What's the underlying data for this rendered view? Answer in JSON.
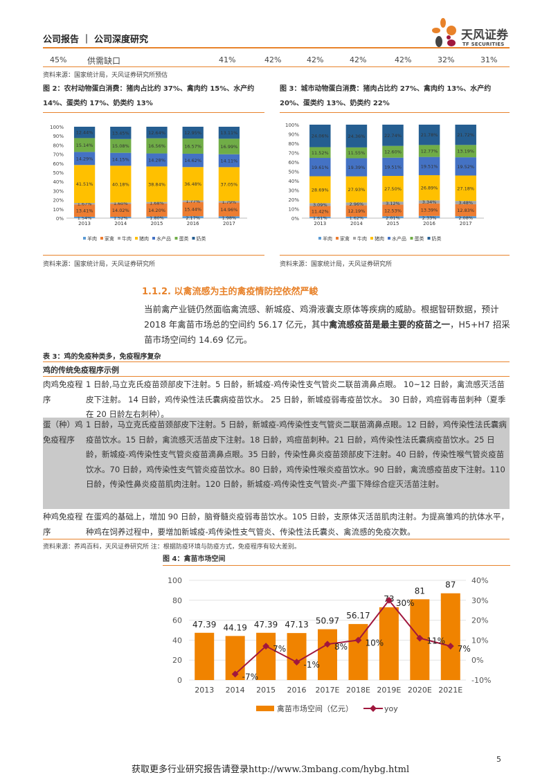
{
  "header": {
    "title": "公司报告 ｜ 公司深度研究",
    "logo_cn": "天风证券",
    "logo_en": "TF SECURITIES"
  },
  "top_row": {
    "cells": [
      "45%",
      "供需缺口",
      "41%",
      "42%",
      "42%",
      "42%",
      "42%",
      "32%",
      "31%"
    ],
    "source": "资料来源：国家统计局，天风证券研究所预估"
  },
  "fig2": {
    "title_label": "图 2：",
    "title": "农村动物蛋白消费：猪肉占比约 37%、禽肉约 15%、水产约 14%、蛋类约 17%、奶类约 13%",
    "source": "资料来源：国家统计局，天风证券研究所"
  },
  "fig3": {
    "title_label": "图 3：",
    "title": "城市动物蛋白消费：猪肉占比约 27%、禽肉约 13%、水产约 20%、蛋类约 13%、奶类约 22%",
    "source": "资料来源：国家统计局，天风证券研究所"
  },
  "chart_data": [
    {
      "type": "bar",
      "stacked": true,
      "categories": [
        "2013",
        "2014",
        "2015",
        "2016",
        "2017"
      ],
      "ylim": [
        0,
        100
      ],
      "yticks": [
        "0%",
        "10%",
        "20%",
        "30%",
        "40%",
        "50%",
        "60%",
        "70%",
        "80%",
        "90%",
        "100%"
      ],
      "legend": "bottom",
      "series": [
        {
          "name": "羊肉",
          "color": "#5B9BD5",
          "values": [
            1.54,
            1.52,
            1.8,
            2.17,
            1.98
          ],
          "labels": [
            "1.54%",
            "1.52%",
            "1.80%",
            "2.17%",
            "1.98%"
          ]
        },
        {
          "name": "家禽",
          "color": "#ED7D31",
          "values": [
            13.41,
            14.02,
            14.2,
            15.44,
            14.96
          ],
          "labels": [
            "13.41%",
            "14.02%",
            "14.20%",
            "15.44%",
            "14.96%"
          ]
        },
        {
          "name": "牛肉",
          "color": "#A5A5A5",
          "values": [
            1.67,
            1.6,
            1.68,
            1.77,
            1.79
          ],
          "labels": [
            "1.67%",
            "1.60%",
            "1.68%",
            "1.77%",
            "1.79%"
          ]
        },
        {
          "name": "猪肉",
          "color": "#FFC000",
          "values": [
            41.51,
            40.18,
            38.84,
            36.48,
            37.05
          ],
          "labels": [
            "41.51%",
            "40.18%",
            "38.84%",
            "36.48%",
            "37.05%"
          ]
        },
        {
          "name": "水产品",
          "color": "#4472C4",
          "values": [
            14.29,
            14.15,
            14.28,
            14.62,
            14.11
          ],
          "labels": [
            "14.29%",
            "14.15%",
            "14.28%",
            "14.62%",
            "14.11%"
          ]
        },
        {
          "name": "蛋类",
          "color": "#70AD47",
          "values": [
            15.14,
            15.08,
            16.56,
            16.57,
            16.99
          ],
          "labels": [
            "15.14%",
            "15.08%",
            "16.56%",
            "16.57%",
            "16.99%"
          ]
        },
        {
          "name": "奶类",
          "color": "#255E91",
          "values": [
            12.44,
            13.45,
            12.64,
            12.95,
            13.11
          ],
          "labels": [
            "12.44%",
            "13.45%",
            "12.64%",
            "12.95%",
            "13.11%"
          ]
        }
      ]
    },
    {
      "type": "bar",
      "stacked": true,
      "categories": [
        "2013",
        "2014",
        "2015",
        "2016",
        "2017"
      ],
      "ylim": [
        0,
        100
      ],
      "yticks": [
        "0%",
        "10%",
        "20%",
        "30%",
        "40%",
        "50%",
        "60%",
        "70%",
        "80%",
        "90%",
        "100%"
      ],
      "legend": "bottom",
      "series": [
        {
          "name": "羊肉",
          "color": "#5B9BD5",
          "values": [
            1.61,
            1.62,
            2.01,
            2.33,
            2.08
          ],
          "labels": [
            "1.61%",
            "1.62%",
            "2.01%",
            "2.33%",
            "2.08%"
          ]
        },
        {
          "name": "家禽",
          "color": "#ED7D31",
          "values": [
            11.42,
            12.19,
            12.53,
            13.39,
            12.83
          ],
          "labels": [
            "11.42%",
            "12.19%",
            "12.53%",
            "13.39%",
            "12.83%"
          ]
        },
        {
          "name": "牛肉",
          "color": "#A5A5A5",
          "values": [
            3.09,
            2.96,
            3.12,
            3.34,
            3.48
          ],
          "labels": [
            "3.09%",
            "2.96%",
            "3.12%",
            "3.34%",
            "3.48%"
          ]
        },
        {
          "name": "猪肉",
          "color": "#FFC000",
          "values": [
            28.69,
            27.93,
            27.5,
            26.89,
            27.18
          ],
          "labels": [
            "28.69%",
            "27.93%",
            "27.50%",
            "26.89%",
            "27.18%"
          ]
        },
        {
          "name": "水产品",
          "color": "#4472C4",
          "values": [
            19.61,
            19.39,
            19.51,
            19.51,
            19.52
          ],
          "labels": [
            "19.61%",
            "19.39%",
            "19.51%",
            "19.51%",
            "19.52%"
          ]
        },
        {
          "name": "蛋类",
          "color": "#70AD47",
          "values": [
            11.52,
            11.55,
            12.6,
            12.77,
            13.19
          ],
          "labels": [
            "11.52%",
            "11.55%",
            "12.60%",
            "12.77%",
            "13.19%"
          ]
        },
        {
          "name": "奶类",
          "color": "#255E91",
          "values": [
            24.06,
            24.36,
            22.74,
            21.78,
            21.72
          ],
          "labels": [
            "24.06%",
            "24.36%",
            "22.74%",
            "21.78%",
            "21.72%"
          ]
        }
      ]
    },
    {
      "type": "bar+line",
      "categories": [
        "2013",
        "2014",
        "2015",
        "2016",
        "2017E",
        "2018E",
        "2019E",
        "2020E",
        "2021E"
      ],
      "ylim": [
        0,
        100
      ],
      "yticks": [
        "0",
        "20",
        "40",
        "60",
        "80",
        "100"
      ],
      "y2lim": [
        -10,
        40
      ],
      "y2ticks": [
        "-10%",
        "0%",
        "10%",
        "20%",
        "30%",
        "40%"
      ],
      "legend": "bottom",
      "grid": true,
      "series": [
        {
          "name": "禽苗市场空间（亿元）",
          "type": "bar",
          "color": "#F08300",
          "values": [
            47.39,
            44.19,
            47.39,
            47.13,
            50.97,
            56.17,
            73,
            81,
            87
          ],
          "labels": [
            "47.39",
            "44.19",
            "47.39",
            "47.13",
            "50.97",
            "56.17",
            "73",
            "81",
            "87"
          ]
        },
        {
          "name": "yoy",
          "type": "line",
          "axis": "right",
          "color": "#A0173D",
          "values": [
            null,
            -7,
            7,
            -1,
            8,
            10,
            30,
            11,
            7
          ],
          "labels": [
            "",
            "-7%",
            "7%",
            "-1%",
            "8%",
            "10%",
            "30%",
            "11%",
            "7%"
          ]
        }
      ]
    }
  ],
  "section": {
    "title": "1.1.2. 以禽流感为主的禽疫情防控依然严峻",
    "para_1": "当前禽产业链仍然面临禽流感、新城疫、鸡滑液囊支原体等疾病的威胁。根据智研数据，预计 2018 年禽苗市场总的空间约 56.17 亿元，其中",
    "para_bold": "禽流感疫苗是最主要的疫苗之一",
    "para_2": "，H5+H7 招采苗市场空间约 14.69 亿元。"
  },
  "table3": {
    "title": "表 3：鸡的免疫种类多，免疫程序复杂",
    "header": "鸡的传统免疫程序示例",
    "rows": [
      {
        "label": "肉鸡免疫程序",
        "text": "1 日龄,马立克氏疫苗颈部皮下注射。5 日龄，新城疫-鸡传染性支气管炎二联苗滴鼻点眼。 10~12 日龄，禽流感灭活苗皮下注射。 14 日龄，鸡传染性法氏囊病疫苗饮水。 25 日龄，新城疫弱毒疫苗饮水。 30 日龄，鸡痘弱毒苗刺种（夏季在 20 日龄左右刺种）。"
      },
      {
        "label": "蛋（种）鸡免疫程序",
        "text": "1 日龄，马立克氏疫苗颈部皮下注射。5 日龄，新城疫-鸡传染性支气管炎二联苗滴鼻点眼。12 日龄，鸡传染性法氏囊病疫苗饮水。15 日龄，禽流感灭活苗皮下注射。18 日龄，鸡痘苗刺种。21 日龄，鸡传染性法氏囊病疫苗饮水。25 日龄，新城疫-鸡传染性支气管炎疫苗滴鼻点眼。35 日龄，传染性鼻炎疫苗颈部皮下注射。40 日龄，传染性喉气管炎疫苗饮水。70 日龄，鸡传染性支气管炎疫苗饮水。80 日龄，鸡传染性喉炎疫苗饮水。90 日龄，禽流感疫苗皮下注射。110 日龄，传染性鼻炎疫苗肌肉注射。120 日龄，新城疫-鸡传染性支气管炎-产蛋下降综合症灭活苗注射。"
      },
      {
        "label": "种鸡免疫程序",
        "text": "在蛋鸡的基础上，增加 90 日龄，脑脊髓炎疫弱毒苗饮水。105 日龄，支原体灭活苗肌肉注射。为提高雏鸡的抗体水平，种鸡在饲养过程中，要增加新城疫-鸡传染性支气管炎、传染性法氏囊炎、禽流感的免疫次数。"
      }
    ],
    "source": "资料来源：养鸡百科，天风证券研究所 注：根据防疫环境与防疫方式，免疫程序有较大差别。"
  },
  "fig4": {
    "title": "图 4：禽苗市场空间"
  },
  "footer": {
    "text": "获取更多行业研究报告请登录http://www.3mbang.com/hybg.html",
    "page": "5"
  }
}
